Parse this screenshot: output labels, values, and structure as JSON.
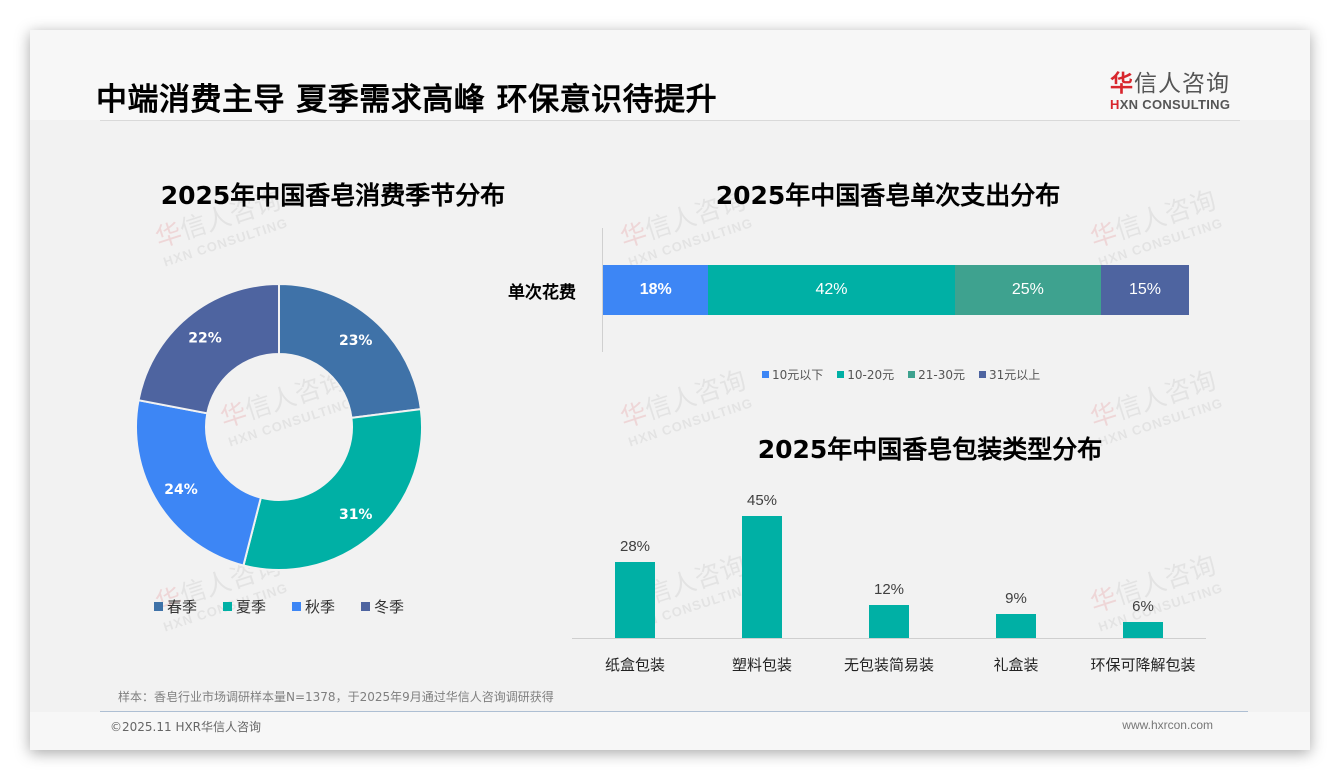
{
  "header": {
    "title": "中端消费主导 夏季需求高峰 环保意识待提升",
    "logo": {
      "cn_red": "华",
      "cn_rest": "信人咨询",
      "en_red": "H",
      "en_rest": "XN CONSULTING"
    }
  },
  "watermark": {
    "cn_red": "华",
    "cn_rest": "信人咨询",
    "en": "HXN CONSULTING"
  },
  "colors": {
    "spring": "#3f72a8",
    "summer": "#00b0a5",
    "autumn": "#3d86f5",
    "winter": "#4e64a0",
    "under10": "#3d86f5",
    "r10_20": "#00b0a5",
    "r21_30": "#3ea28f",
    "over31": "#4e64a0",
    "column": "#00b0a5"
  },
  "chart_data": [
    {
      "type": "pie",
      "subtype": "donut",
      "title": "2025年中国香皂消费季节分布",
      "categories": [
        "春季",
        "夏季",
        "秋季",
        "冬季"
      ],
      "values": [
        23,
        31,
        24,
        22
      ],
      "labels": [
        "23%",
        "31%",
        "24%",
        "22%"
      ],
      "legend_position": "bottom"
    },
    {
      "type": "bar",
      "subtype": "stacked-horizontal-100",
      "title": "2025年中国香皂单次支出分布",
      "categories": [
        "单次花费"
      ],
      "series": [
        {
          "name": "10元以下",
          "values": [
            18
          ],
          "label": "18%"
        },
        {
          "name": "10-20元",
          "values": [
            42
          ],
          "label": "42%"
        },
        {
          "name": "21-30元",
          "values": [
            25
          ],
          "label": "25%"
        },
        {
          "name": "31元以上",
          "values": [
            15
          ],
          "label": "15%"
        }
      ],
      "legend_position": "bottom",
      "xlim": [
        0,
        100
      ]
    },
    {
      "type": "bar",
      "title": "2025年中国香皂包装类型分布",
      "categories": [
        "纸盒包装",
        "塑料包装",
        "无包装简易装",
        "礼盒装",
        "环保可降解包装"
      ],
      "values": [
        28,
        45,
        12,
        9,
        6
      ],
      "labels": [
        "28%",
        "45%",
        "12%",
        "9%",
        "6%"
      ],
      "xlabel": "",
      "ylabel": "",
      "grid": false
    }
  ],
  "footer": {
    "source": "样本：香皂行业市场调研样本量N=1378，于2025年9月通过华信人咨询调研获得",
    "copyright": "©2025.11 HXR华信人咨询",
    "website": "www.hxrcon.com"
  }
}
